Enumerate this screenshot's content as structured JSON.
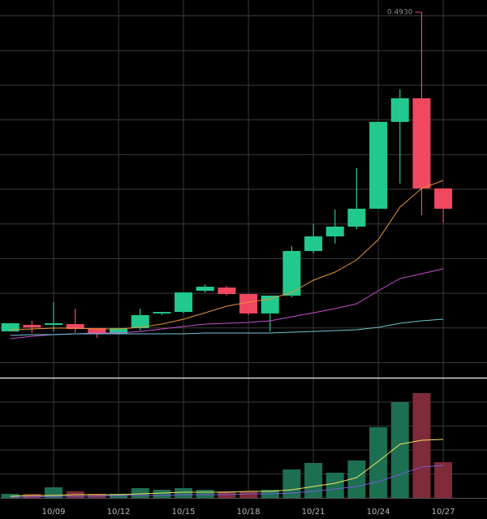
{
  "chart_data": {
    "type": "candlestick",
    "categories": [
      null,
      null,
      "10/09",
      null,
      null,
      "10/12",
      null,
      null,
      "10/15",
      null,
      null,
      "10/18",
      null,
      null,
      "10/21",
      null,
      null,
      "10/24",
      null,
      null,
      "10/27"
    ],
    "open": [
      0.0624,
      0.0712,
      0.0712,
      0.0723,
      0.0668,
      0.0592,
      0.0668,
      0.0866,
      0.0887,
      0.1172,
      0.1216,
      0.1128,
      0.0866,
      0.1107,
      0.1709,
      0.1906,
      0.2038,
      0.2279,
      0.3451,
      0.3769,
      0.2553
    ],
    "high": [
      0.0734,
      0.0767,
      0.1019,
      0.0931,
      0.0668,
      0.0668,
      0.0931,
      0.0887,
      0.115,
      0.126,
      0.1238,
      0.1128,
      0.1107,
      0.1775,
      0.2071,
      0.2268,
      0.2827,
      0.3451,
      0.3889,
      0.493,
      0.2553
    ],
    "low": [
      0.0624,
      0.0603,
      0.0624,
      0.0603,
      0.0537,
      0.0581,
      0.0635,
      0.0844,
      0.0866,
      0.115,
      0.1107,
      0.0844,
      0.0624,
      0.1085,
      0.1676,
      0.1808,
      0.2005,
      0.2279,
      0.2618,
      0.2191,
      0.2093
    ],
    "close": [
      0.0734,
      0.0679,
      0.0734,
      0.0657,
      0.0592,
      0.0668,
      0.0844,
      0.0887,
      0.115,
      0.1227,
      0.1128,
      0.0866,
      0.1107,
      0.1709,
      0.1906,
      0.2038,
      0.2279,
      0.3451,
      0.3769,
      0.2553,
      0.2279
    ],
    "up_color": "#22c98d",
    "down_color": "#f0485f",
    "ylim": [
      0,
      0.5095
    ],
    "annotation": {
      "text": "0.4930",
      "value": 0.493
    },
    "ma": [
      {
        "color": "#e8913a",
        "values": [
          0.0646,
          0.0657,
          0.0668,
          0.0668,
          0.0657,
          0.0657,
          0.0679,
          0.0723,
          0.0789,
          0.0876,
          0.0964,
          0.1019,
          0.1063,
          0.115,
          0.1315,
          0.1424,
          0.1589,
          0.1863,
          0.2301,
          0.2553,
          0.2662
        ]
      },
      {
        "color": "#c84fd0",
        "values": [
          0.0526,
          0.0559,
          0.0581,
          0.0592,
          0.0603,
          0.0603,
          0.0624,
          0.0657,
          0.069,
          0.0723,
          0.0734,
          0.0745,
          0.0767,
          0.0822,
          0.0876,
          0.0931,
          0.0997,
          0.1172,
          0.1337,
          0.1402,
          0.1468
        ]
      },
      {
        "color": "#6fc7d3",
        "values": [
          0.057,
          0.0581,
          0.0581,
          0.0592,
          0.0592,
          0.0592,
          0.0592,
          0.0592,
          0.0592,
          0.0603,
          0.0603,
          0.0603,
          0.0603,
          0.0614,
          0.0624,
          0.0635,
          0.0646,
          0.0679,
          0.0734,
          0.0767,
          0.0789
        ]
      }
    ],
    "volume": [
      5,
      5,
      13,
      8,
      5,
      5,
      12,
      10,
      12,
      10,
      8,
      8,
      10,
      35,
      43,
      31,
      46,
      87,
      118,
      129,
      44
    ],
    "volume_up_color": "#1d6f52",
    "volume_down_color": "#7e2a38",
    "volume_ylim": [
      0,
      147
    ],
    "volume_ma": [
      {
        "color": "#f2e85a",
        "values": [
          2,
          3,
          3,
          4,
          4,
          4,
          5,
          6,
          7,
          7,
          7,
          8,
          8,
          10,
          14,
          18,
          25,
          45,
          66,
          71,
          72
        ]
      },
      {
        "color": "#7a5ad6",
        "values": [
          1,
          1,
          2,
          2,
          2,
          3,
          3,
          3,
          4,
          4,
          4,
          5,
          5,
          6,
          8,
          11,
          14,
          20,
          29,
          38,
          40
        ]
      }
    ]
  }
}
